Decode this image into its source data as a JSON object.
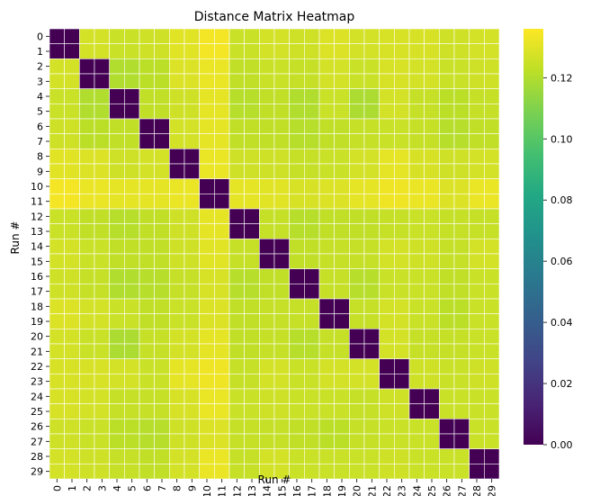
{
  "chart_data": {
    "type": "heatmap",
    "title": "Distance Matrix Heatmap",
    "xlabel": "Run #",
    "ylabel": "Run #",
    "x_categories": [
      "0",
      "1",
      "2",
      "3",
      "4",
      "5",
      "6",
      "7",
      "8",
      "9",
      "10",
      "11",
      "12",
      "13",
      "14",
      "15",
      "16",
      "17",
      "18",
      "19",
      "20",
      "21",
      "22",
      "23",
      "24",
      "25",
      "26",
      "27",
      "28",
      "29"
    ],
    "y_categories": [
      "0",
      "1",
      "2",
      "3",
      "4",
      "5",
      "6",
      "7",
      "8",
      "9",
      "10",
      "11",
      "12",
      "13",
      "14",
      "15",
      "16",
      "17",
      "18",
      "19",
      "20",
      "21",
      "22",
      "23",
      "24",
      "25",
      "26",
      "27",
      "28",
      "29"
    ],
    "block_size": 2,
    "block_values": [
      [
        0.0,
        0.127,
        0.125,
        0.126,
        0.13,
        0.134,
        0.125,
        0.127,
        0.126,
        0.129,
        0.127,
        0.128,
        0.128,
        0.126,
        0.127
      ],
      [
        0.127,
        0.0,
        0.12,
        0.122,
        0.129,
        0.132,
        0.123,
        0.125,
        0.124,
        0.127,
        0.125,
        0.128,
        0.127,
        0.125,
        0.126
      ],
      [
        0.125,
        0.12,
        0.0,
        0.123,
        0.126,
        0.131,
        0.121,
        0.123,
        0.12,
        0.125,
        0.119,
        0.127,
        0.124,
        0.122,
        0.124
      ],
      [
        0.126,
        0.122,
        0.123,
        0.0,
        0.127,
        0.131,
        0.123,
        0.123,
        0.121,
        0.123,
        0.124,
        0.125,
        0.124,
        0.121,
        0.123
      ],
      [
        0.13,
        0.129,
        0.126,
        0.127,
        0.0,
        0.132,
        0.126,
        0.126,
        0.124,
        0.125,
        0.127,
        0.131,
        0.128,
        0.126,
        0.127
      ],
      [
        0.134,
        0.132,
        0.131,
        0.131,
        0.132,
        0.0,
        0.131,
        0.13,
        0.128,
        0.129,
        0.131,
        0.133,
        0.132,
        0.129,
        0.132
      ],
      [
        0.125,
        0.123,
        0.121,
        0.123,
        0.126,
        0.131,
        0.0,
        0.124,
        0.121,
        0.123,
        0.123,
        0.124,
        0.125,
        0.124,
        0.124
      ],
      [
        0.127,
        0.125,
        0.123,
        0.123,
        0.126,
        0.13,
        0.124,
        0.0,
        0.123,
        0.124,
        0.124,
        0.127,
        0.126,
        0.124,
        0.127
      ],
      [
        0.126,
        0.124,
        0.12,
        0.121,
        0.124,
        0.128,
        0.121,
        0.123,
        0.0,
        0.124,
        0.121,
        0.125,
        0.125,
        0.123,
        0.125
      ],
      [
        0.129,
        0.127,
        0.125,
        0.123,
        0.125,
        0.129,
        0.123,
        0.124,
        0.124,
        0.0,
        0.124,
        0.127,
        0.125,
        0.122,
        0.125
      ],
      [
        0.127,
        0.125,
        0.119,
        0.124,
        0.127,
        0.131,
        0.123,
        0.124,
        0.121,
        0.124,
        0.0,
        0.127,
        0.124,
        0.124,
        0.125
      ],
      [
        0.128,
        0.128,
        0.127,
        0.125,
        0.131,
        0.133,
        0.124,
        0.127,
        0.125,
        0.127,
        0.127,
        0.0,
        0.126,
        0.125,
        0.126
      ],
      [
        0.128,
        0.127,
        0.124,
        0.124,
        0.128,
        0.132,
        0.125,
        0.126,
        0.125,
        0.125,
        0.124,
        0.126,
        0.0,
        0.125,
        0.125
      ],
      [
        0.126,
        0.125,
        0.122,
        0.121,
        0.126,
        0.129,
        0.124,
        0.124,
        0.123,
        0.122,
        0.124,
        0.125,
        0.125,
        0.0,
        0.125
      ],
      [
        0.127,
        0.126,
        0.124,
        0.123,
        0.127,
        0.132,
        0.124,
        0.127,
        0.125,
        0.125,
        0.125,
        0.126,
        0.125,
        0.125,
        0.0
      ]
    ],
    "vmin": 0.0,
    "vmax": 0.136,
    "colormap": "viridis",
    "colorbar_ticks": [
      "0.00",
      "0.02",
      "0.04",
      "0.06",
      "0.08",
      "0.10",
      "0.12"
    ],
    "grid_lines": "white",
    "colorbar_position": "right"
  }
}
